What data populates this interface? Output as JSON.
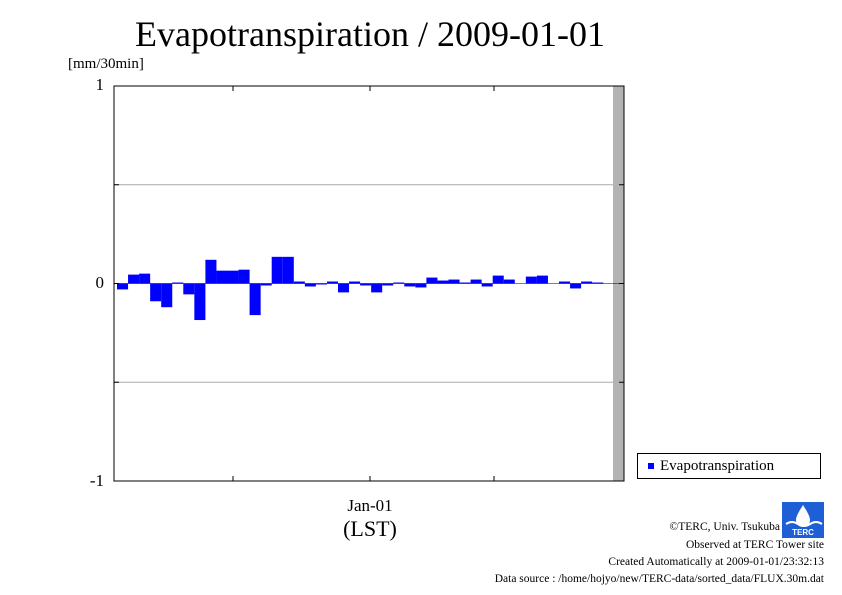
{
  "title": "Evapotranspiration / 2009-01-01",
  "unit_label": "[mm/30min]",
  "colors": {
    "series": "#0000ff",
    "grid": "#aaaaaa",
    "future_band": "#b3b3b3",
    "logo": "#1e5fd6"
  },
  "chart_data": {
    "type": "bar",
    "title": "Evapotranspiration / 2009-01-01",
    "ylabel": "[mm/30min]",
    "xlabel": "(LST)",
    "ylim": [
      -1,
      1
    ],
    "yticks": [
      "1",
      "0",
      "-1"
    ],
    "x_tick_labels": [
      "Jan-01"
    ],
    "grid": true,
    "legend_position": "bottom-right",
    "series": [
      {
        "name": "Evapotranspiration",
        "values": [
          -0.03,
          0.045,
          0.05,
          -0.09,
          -0.12,
          0.005,
          -0.055,
          -0.185,
          0.12,
          0.065,
          0.065,
          0.07,
          -0.16,
          -0.01,
          0.135,
          0.135,
          0.01,
          -0.015,
          -0.005,
          0.01,
          -0.045,
          0.01,
          -0.01,
          -0.045,
          -0.01,
          0.005,
          -0.015,
          -0.02,
          0.03,
          0.015,
          0.02,
          0.005,
          0.02,
          -0.015,
          0.04,
          0.02,
          0.0,
          0.035,
          0.04,
          0.0,
          0.01,
          -0.025,
          0.01,
          0.005
        ]
      }
    ]
  },
  "footer": {
    "copyright": "©TERC, Univ. Tsukuba",
    "observed": "Observed at TERC Tower site",
    "created": "Created Automatically at 2009-01-01/23:32:13",
    "source": "Data source : /home/hojyo/new/TERC-data/sorted_data/FLUX.30m.dat"
  },
  "logo_text": "TERC"
}
